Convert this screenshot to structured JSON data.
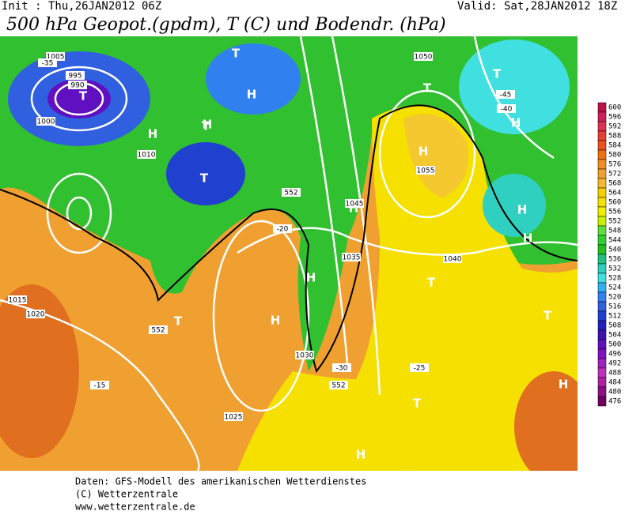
{
  "header": {
    "init": "Init : Thu,26JAN2012 06Z",
    "valid": "Valid: Sat,28JAN2012 18Z",
    "title": "500 hPa Geopot.(gpdm), T (C) und Bodendr. (hPa)"
  },
  "legend": {
    "levels": [
      600,
      596,
      592,
      588,
      584,
      580,
      576,
      572,
      568,
      564,
      560,
      556,
      552,
      548,
      544,
      540,
      536,
      532,
      528,
      524,
      520,
      516,
      512,
      508,
      504,
      500,
      496,
      492,
      488,
      484,
      480,
      476
    ],
    "colors": [
      "#c0104a",
      "#d0205a",
      "#e03050",
      "#e84030",
      "#f05020",
      "#f07010",
      "#f09020",
      "#f0a030",
      "#f5b830",
      "#f5d000",
      "#f5e000",
      "#f0f000",
      "#c8f000",
      "#60e040",
      "#30d030",
      "#20c020",
      "#20c080",
      "#30d0c0",
      "#40e0e0",
      "#30b0f0",
      "#3080f0",
      "#3060e0",
      "#2040d0",
      "#2020c0",
      "#4010b0",
      "#6010c0",
      "#8010c0",
      "#a020c0",
      "#c030c0",
      "#b020a0",
      "#901080",
      "#700060"
    ]
  },
  "map": {
    "labels": [
      "T",
      "T",
      "T",
      "H",
      "H",
      "H",
      "H",
      "T",
      "T",
      "H",
      "H",
      "H",
      "T",
      "H",
      "T",
      "T",
      "H",
      "H",
      "T",
      "H",
      "H",
      "T",
      "1005",
      "995",
      "990",
      "1000",
      "1010",
      "1015",
      "1020",
      "1050",
      "1055",
      "1045",
      "1040",
      "1035",
      "1030",
      "1025",
      "-35",
      "-30",
      "-25",
      "-20",
      "-15",
      "-40",
      "-45",
      "552",
      "552",
      "552"
    ]
  },
  "footer": {
    "lines": [
      "Daten: GFS-Modell des amerikanischen Wetterdienstes",
      "(C) Wetterzentrale",
      "www.wetterzentrale.de"
    ]
  }
}
